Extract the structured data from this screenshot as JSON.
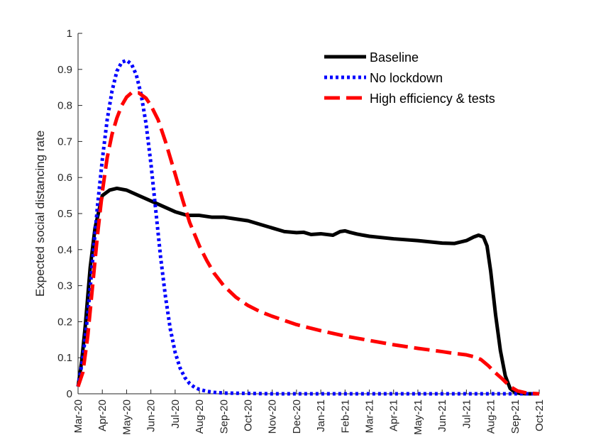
{
  "chart_data": {
    "type": "line",
    "title": "",
    "xlabel": "",
    "ylabel": "Expected social distancing rate",
    "x_tick_labels": [
      "Mar-20",
      "Apr-20",
      "May-20",
      "Jun-20",
      "Jul-20",
      "Aug-20",
      "Sep-20",
      "Oct-20",
      "Nov-20",
      "Dec-20",
      "Jan-21",
      "Feb-21",
      "Mar-21",
      "Apr-21",
      "May-21",
      "Jun-21",
      "Jul-21",
      "Aug-21",
      "Sep-21",
      "Oct-21"
    ],
    "y_tick_labels": [
      "0",
      "0.1",
      "0.2",
      "0.3",
      "0.4",
      "0.5",
      "0.6",
      "0.7",
      "0.8",
      "0.9",
      "1"
    ],
    "xlim": [
      0,
      19
    ],
    "ylim": [
      0,
      1
    ],
    "legend_position": "top-right",
    "grid": false,
    "series": [
      {
        "name": "Baseline",
        "color": "#000000",
        "style": "solid",
        "x": [
          0,
          0.15,
          0.3,
          0.5,
          0.7,
          0.9,
          1.0,
          1.3,
          1.6,
          2.0,
          2.5,
          3.0,
          3.5,
          4.0,
          4.5,
          5.0,
          5.5,
          6.0,
          6.5,
          7.0,
          7.5,
          8.0,
          8.5,
          9.0,
          9.3,
          9.6,
          10.0,
          10.5,
          10.8,
          11.0,
          11.2,
          11.5,
          12.0,
          13.0,
          14.0,
          15.0,
          15.5,
          16.0,
          16.3,
          16.5,
          16.7,
          16.85,
          17.0,
          17.2,
          17.4,
          17.6,
          17.8,
          18.0,
          18.2,
          18.5,
          19.0
        ],
        "y": [
          0.02,
          0.09,
          0.19,
          0.35,
          0.46,
          0.52,
          0.55,
          0.565,
          0.57,
          0.565,
          0.55,
          0.535,
          0.52,
          0.505,
          0.495,
          0.495,
          0.49,
          0.49,
          0.485,
          0.48,
          0.47,
          0.46,
          0.45,
          0.447,
          0.448,
          0.442,
          0.444,
          0.44,
          0.45,
          0.452,
          0.448,
          0.443,
          0.437,
          0.43,
          0.425,
          0.418,
          0.417,
          0.425,
          0.435,
          0.44,
          0.435,
          0.41,
          0.34,
          0.22,
          0.12,
          0.05,
          0.015,
          0.004,
          0.001,
          0.0,
          0.0
        ]
      },
      {
        "name": "No lockdown",
        "color": "#0000ff",
        "style": "dotted",
        "x": [
          0,
          0.2,
          0.4,
          0.6,
          0.8,
          1.0,
          1.2,
          1.4,
          1.6,
          1.8,
          2.0,
          2.2,
          2.4,
          2.6,
          2.8,
          3.0,
          3.2,
          3.4,
          3.6,
          3.8,
          4.0,
          4.2,
          4.4,
          4.6,
          4.8,
          5.0,
          5.3,
          5.6,
          6.0,
          7.0,
          8.0,
          10.0,
          12.0,
          14.0,
          16.0,
          18.0,
          19.0
        ],
        "y": [
          0.02,
          0.1,
          0.22,
          0.37,
          0.52,
          0.65,
          0.76,
          0.84,
          0.895,
          0.92,
          0.925,
          0.915,
          0.885,
          0.83,
          0.75,
          0.64,
          0.51,
          0.38,
          0.27,
          0.18,
          0.115,
          0.072,
          0.045,
          0.028,
          0.018,
          0.012,
          0.007,
          0.004,
          0.002,
          0.001,
          0.0,
          0.0,
          0.0,
          0.0,
          0.0,
          0.0,
          0.0
        ]
      },
      {
        "name": "High efficiency & tests",
        "color": "#ff0000",
        "style": "dashed",
        "x": [
          0,
          0.2,
          0.4,
          0.6,
          0.8,
          1.0,
          1.2,
          1.4,
          1.6,
          1.8,
          2.0,
          2.2,
          2.5,
          2.8,
          3.0,
          3.3,
          3.6,
          4.0,
          4.3,
          4.6,
          5.0,
          5.3,
          5.6,
          6.0,
          6.5,
          7.0,
          7.5,
          8.0,
          9.0,
          10.0,
          11.0,
          12.0,
          13.0,
          14.0,
          15.0,
          15.5,
          16.0,
          16.3,
          16.6,
          16.9,
          17.2,
          17.5,
          17.8,
          18.1,
          18.5,
          19.0
        ],
        "y": [
          0.02,
          0.06,
          0.16,
          0.3,
          0.44,
          0.56,
          0.655,
          0.72,
          0.765,
          0.8,
          0.823,
          0.835,
          0.835,
          0.82,
          0.8,
          0.76,
          0.7,
          0.61,
          0.54,
          0.475,
          0.41,
          0.37,
          0.335,
          0.3,
          0.268,
          0.245,
          0.228,
          0.215,
          0.192,
          0.175,
          0.16,
          0.148,
          0.136,
          0.126,
          0.117,
          0.112,
          0.108,
          0.103,
          0.095,
          0.078,
          0.058,
          0.04,
          0.02,
          0.008,
          0.002,
          0.0
        ]
      }
    ]
  }
}
